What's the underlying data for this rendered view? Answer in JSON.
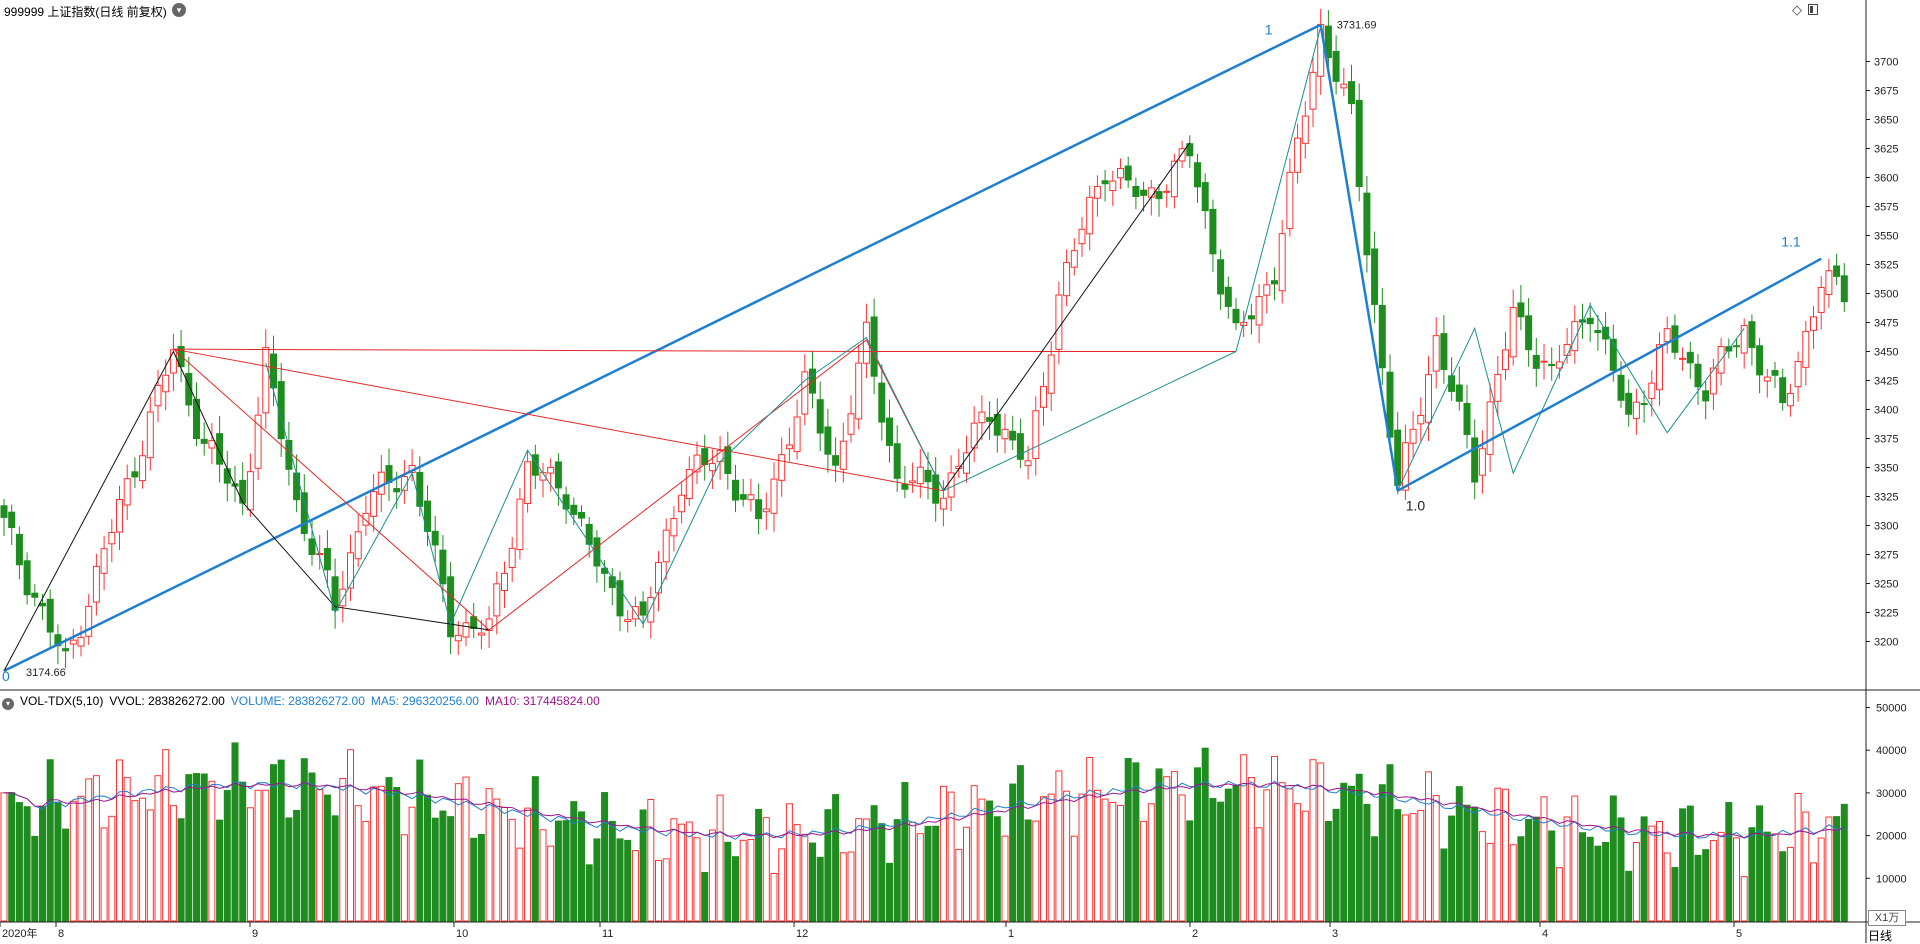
{
  "title": "999999 上证指数(日线 前复权)",
  "title_dropdown_icon": "chevron-down-icon",
  "window_icons": [
    "diamond-icon",
    "panel-toggle-icon"
  ],
  "main_chart": {
    "y_ticks": [
      3200,
      3225,
      3250,
      3275,
      3300,
      3325,
      3350,
      3375,
      3400,
      3425,
      3450,
      3475,
      3500,
      3525,
      3550,
      3575,
      3600,
      3625,
      3650,
      3675,
      3700
    ],
    "high_label": "3731.69",
    "low_label": "3174.66",
    "wave_labels": [
      "0",
      "1",
      "1.0",
      "1.1"
    ],
    "up_color": "#ff3232",
    "down_color": "#1e8c1e"
  },
  "volume_panel": {
    "indicator": "VOL-TDX(5,10)",
    "vvol": "VVOL: 283826272.00",
    "volume": "VOLUME: 283826272.00",
    "ma5": "MA5: 296320256.00",
    "ma10": "MA10: 317445824.00",
    "y_ticks": [
      "50000",
      "40000",
      "30000",
      "20000",
      "10000"
    ],
    "unit": "X1万",
    "ma5_color": "#1e7fd0",
    "ma10_color": "#a0148c"
  },
  "x_axis": {
    "labels": [
      "2020年",
      "8",
      "9",
      "10",
      "11",
      "12",
      "1",
      "2",
      "3",
      "4",
      "5"
    ],
    "period": "日线"
  },
  "chart_data": {
    "type": "candlestick",
    "series": [
      {
        "name": "上证指数",
        "range": [
          3174.66,
          3731.69
        ]
      },
      {
        "name": "VOLUME",
        "last": 283826272.0
      },
      {
        "name": "MA5",
        "last": 296320256.0
      },
      {
        "name": "MA10",
        "last": 317445824.0
      }
    ]
  }
}
